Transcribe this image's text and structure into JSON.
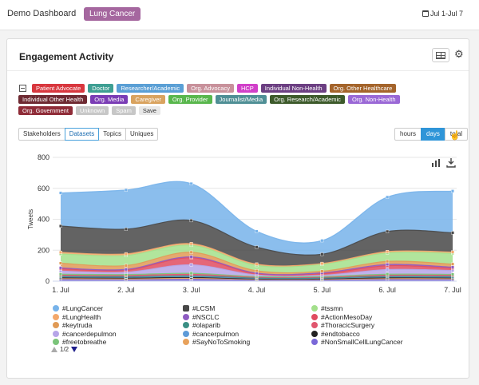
{
  "header": {
    "app_title": "Demo Dashboard",
    "topic_pill": "Lung Cancer",
    "date_range": "Jul 1-Jul 7",
    "calendar_icon": "calendar-icon"
  },
  "card": {
    "title": "Engagement Activity",
    "table_icon": "table-icon",
    "settings_icon": "gear-icon"
  },
  "filters": {
    "rows": [
      [
        {
          "label": "Patient Advocate",
          "color": "#d8373e"
        },
        {
          "label": "Doctor",
          "color": "#3e9f93"
        },
        {
          "label": "Researcher/Academic",
          "color": "#5a9fd5"
        },
        {
          "label": "Org. Advocacy",
          "color": "#c8919b"
        },
        {
          "label": "HCP",
          "color": "#d140c9"
        },
        {
          "label": "Individual Non-Health",
          "color": "#6c3f82"
        },
        {
          "label": "Org. Other Healthcare",
          "color": "#a4642b"
        }
      ],
      [
        {
          "label": "Individual Other Health",
          "color": "#6e2a32"
        },
        {
          "label": "Org. Media",
          "color": "#7a3cb5"
        },
        {
          "label": "Caregiver",
          "color": "#d9a35f"
        },
        {
          "label": "Org. Provider",
          "color": "#59b74d"
        },
        {
          "label": "Journalist/Media",
          "color": "#4f8f95"
        },
        {
          "label": "Org. Research/Academic",
          "color": "#3d5a2b"
        },
        {
          "label": "Org. Non-Health",
          "color": "#9a68d6"
        }
      ],
      [
        {
          "label": "Org. Government",
          "color": "#8f2c38"
        },
        {
          "label": "Unknown",
          "color": "#c7c7c7"
        },
        {
          "label": "Spam",
          "color": "#c7c7c7"
        },
        {
          "label": "Save",
          "color": "#e8e8e8",
          "text_color": "#333"
        }
      ]
    ]
  },
  "tabs": [
    "Stakeholders",
    "Datasets",
    "Topics",
    "Uniques"
  ],
  "active_tab": "Datasets",
  "granularity": [
    "hours",
    "days",
    "total"
  ],
  "active_granularity": "days",
  "chart_data": {
    "type": "area",
    "stacked": true,
    "x": [
      "1. Jul",
      "2. Jul",
      "3. Jul",
      "4. Jul",
      "5. Jul",
      "6. Jul",
      "7. Jul"
    ],
    "ylabel": "Tweets",
    "ylim": [
      0,
      800
    ],
    "yticks": [
      0,
      200,
      400,
      600,
      800
    ],
    "grid": true,
    "series": [
      {
        "name": "#NonSmallCellLungCancer",
        "color": "#7a68d8",
        "values": [
          10,
          8,
          12,
          6,
          6,
          10,
          9
        ]
      },
      {
        "name": "#SayNoToSmoking",
        "color": "#e8a25c",
        "values": [
          8,
          8,
          7,
          6,
          6,
          8,
          8
        ]
      },
      {
        "name": "#endtobacco",
        "color": "#222222",
        "values": [
          4,
          4,
          5,
          3,
          3,
          4,
          4
        ]
      },
      {
        "name": "#cancerpulmon",
        "color": "#5e9bd8",
        "values": [
          6,
          6,
          6,
          4,
          4,
          6,
          6
        ]
      },
      {
        "name": "#olaparib",
        "color": "#3a8f84",
        "values": [
          3,
          3,
          4,
          2,
          2,
          3,
          3
        ]
      },
      {
        "name": "#ThoracicSurgery",
        "color": "#e0566e",
        "values": [
          8,
          8,
          10,
          5,
          5,
          8,
          8
        ]
      },
      {
        "name": "#freetobreathe",
        "color": "#7bc47a",
        "values": [
          6,
          6,
          7,
          4,
          4,
          6,
          6
        ]
      },
      {
        "name": "#cancerdepulmon",
        "color": "#b6a5e8",
        "values": [
          20,
          15,
          55,
          10,
          8,
          30,
          25
        ]
      },
      {
        "name": "#ActionMesoDay",
        "color": "#e04c60",
        "values": [
          15,
          12,
          45,
          8,
          10,
          25,
          15
        ]
      },
      {
        "name": "#NSCLC",
        "color": "#8e5cc2",
        "values": [
          6,
          6,
          6,
          4,
          6,
          8,
          6
        ]
      },
      {
        "name": "#keytruda",
        "color": "#e09a55",
        "values": [
          30,
          25,
          30,
          15,
          10,
          20,
          20
        ]
      },
      {
        "name": "#tssmn",
        "color": "#a3e08b",
        "values": [
          60,
          65,
          45,
          35,
          45,
          55,
          70
        ]
      },
      {
        "name": "#LungHealth",
        "color": "#f3a86b",
        "values": [
          10,
          10,
          10,
          8,
          5,
          8,
          8
        ]
      },
      {
        "name": "#LCSM",
        "color": "#484848",
        "values": [
          170,
          160,
          150,
          110,
          60,
          130,
          125
        ]
      },
      {
        "name": "#LungCancer",
        "color": "#77b3ea",
        "values": [
          214,
          253,
          238,
          102,
          88,
          222,
          269
        ]
      }
    ],
    "legend": {
      "placement": "bottom",
      "columns": [
        [
          "#LungCancer",
          "#LungHealth",
          "#keytruda",
          "#cancerdepulmon",
          "#freetobreathe"
        ],
        [
          "#LCSM",
          "#NSCLC",
          "#olaparib",
          "#cancerpulmon",
          "#SayNoToSmoking"
        ],
        [
          "#tssmn",
          "#ActionMesoDay",
          "#ThoracicSurgery",
          "#endtobacco",
          "#NonSmallCellLungCancer"
        ]
      ],
      "page": "1/2"
    },
    "toolbar_icons": [
      "bar-chart-icon",
      "download-icon"
    ]
  }
}
